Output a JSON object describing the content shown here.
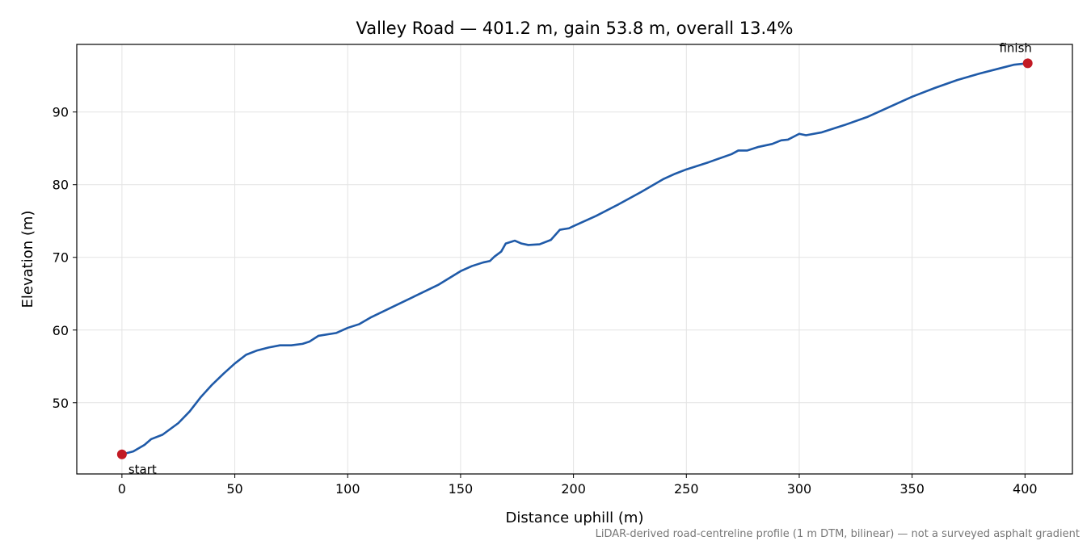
{
  "chart_data": {
    "type": "line",
    "title": "Valley Road — 401.2 m, gain 53.8 m, overall 13.4%",
    "xlabel": "Distance uphill (m)",
    "ylabel": "Elevation (m)",
    "footnote": "LiDAR-derived road-centreline profile (1 m DTM, bilinear) — not a surveyed asphalt gradient",
    "x": [
      0,
      5,
      10,
      13,
      18,
      25,
      30,
      35,
      40,
      45,
      50,
      55,
      60,
      65,
      70,
      75,
      80,
      83,
      87,
      95,
      100,
      105,
      110,
      120,
      130,
      140,
      150,
      155,
      160,
      163,
      165,
      168,
      170,
      174,
      177,
      180,
      185,
      190,
      194,
      198,
      200,
      210,
      220,
      230,
      240,
      245,
      250,
      260,
      270,
      273,
      277,
      282,
      288,
      292,
      295,
      300,
      303,
      310,
      320,
      330,
      340,
      350,
      360,
      370,
      380,
      390,
      395,
      401.2
    ],
    "values": [
      42.9,
      43.3,
      44.2,
      45.0,
      45.6,
      47.2,
      48.8,
      50.8,
      52.5,
      54.0,
      55.4,
      56.6,
      57.2,
      57.6,
      57.9,
      57.9,
      58.1,
      58.4,
      59.2,
      59.6,
      60.3,
      60.8,
      61.7,
      63.2,
      64.7,
      66.2,
      68.1,
      68.8,
      69.3,
      69.5,
      70.1,
      70.8,
      71.9,
      72.3,
      71.9,
      71.7,
      71.8,
      72.4,
      73.8,
      74.0,
      74.3,
      75.7,
      77.3,
      79.0,
      80.8,
      81.5,
      82.1,
      83.1,
      84.2,
      84.7,
      84.7,
      85.2,
      85.6,
      86.1,
      86.2,
      87.0,
      86.8,
      87.2,
      88.2,
      89.3,
      90.7,
      92.1,
      93.3,
      94.4,
      95.3,
      96.1,
      96.5,
      96.7
    ],
    "color": "#1f5aa8",
    "points": [
      {
        "x": 0,
        "y": 42.9,
        "label": "start"
      },
      {
        "x": 401.2,
        "y": 96.7,
        "label": "finish"
      }
    ],
    "point_color": "#c21a24",
    "xlim": [
      -20,
      421
    ],
    "ylim": [
      40.2,
      99.3
    ],
    "xticks": [
      0,
      50,
      100,
      150,
      200,
      250,
      300,
      350,
      400
    ],
    "yticks": [
      50,
      60,
      70,
      80,
      90
    ],
    "grid": true
  }
}
